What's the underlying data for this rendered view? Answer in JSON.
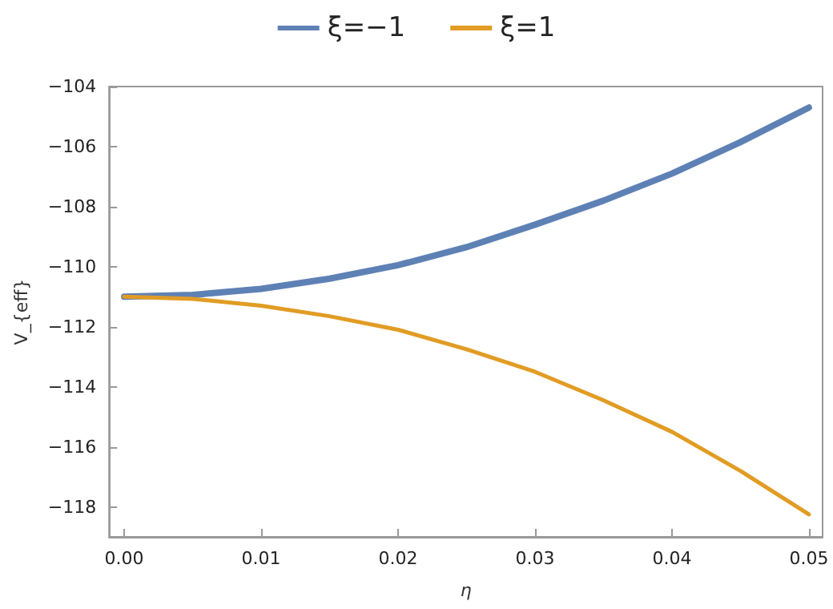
{
  "chart_data": {
    "type": "line",
    "xlabel": "η",
    "ylabel": "V_{eff}",
    "x": [
      0,
      0.005,
      0.01,
      0.015,
      0.02,
      0.025,
      0.03,
      0.035,
      0.04,
      0.045,
      0.05
    ],
    "series": [
      {
        "name": "ξ=−1",
        "color": "#5e81b5",
        "values": [
          -111,
          -110.94,
          -110.74,
          -110.4,
          -109.95,
          -109.35,
          -108.6,
          -107.8,
          -106.9,
          -105.85,
          -104.7
        ]
      },
      {
        "name": "ξ=1",
        "color": "#e19c24",
        "values": [
          -111,
          -111.07,
          -111.3,
          -111.65,
          -112.1,
          -112.75,
          -113.5,
          -114.45,
          -115.5,
          -116.8,
          -118.25
        ]
      }
    ],
    "xlim": [
      -0.0011,
      0.051
    ],
    "xticks": [
      {
        "value": 0,
        "label": "0.00"
      },
      {
        "value": 0.01,
        "label": "0.01"
      },
      {
        "value": 0.02,
        "label": "0.02"
      },
      {
        "value": 0.03,
        "label": "0.03"
      },
      {
        "value": 0.04,
        "label": "0.04"
      },
      {
        "value": 0.05,
        "label": "0.05"
      }
    ],
    "ylim": [
      -119,
      -104
    ],
    "yticks": [
      -118,
      -116,
      -114,
      -112,
      -110,
      -108,
      -106,
      -104
    ],
    "grid": false,
    "legend": "top",
    "marker": "none",
    "line_style": "solid"
  }
}
